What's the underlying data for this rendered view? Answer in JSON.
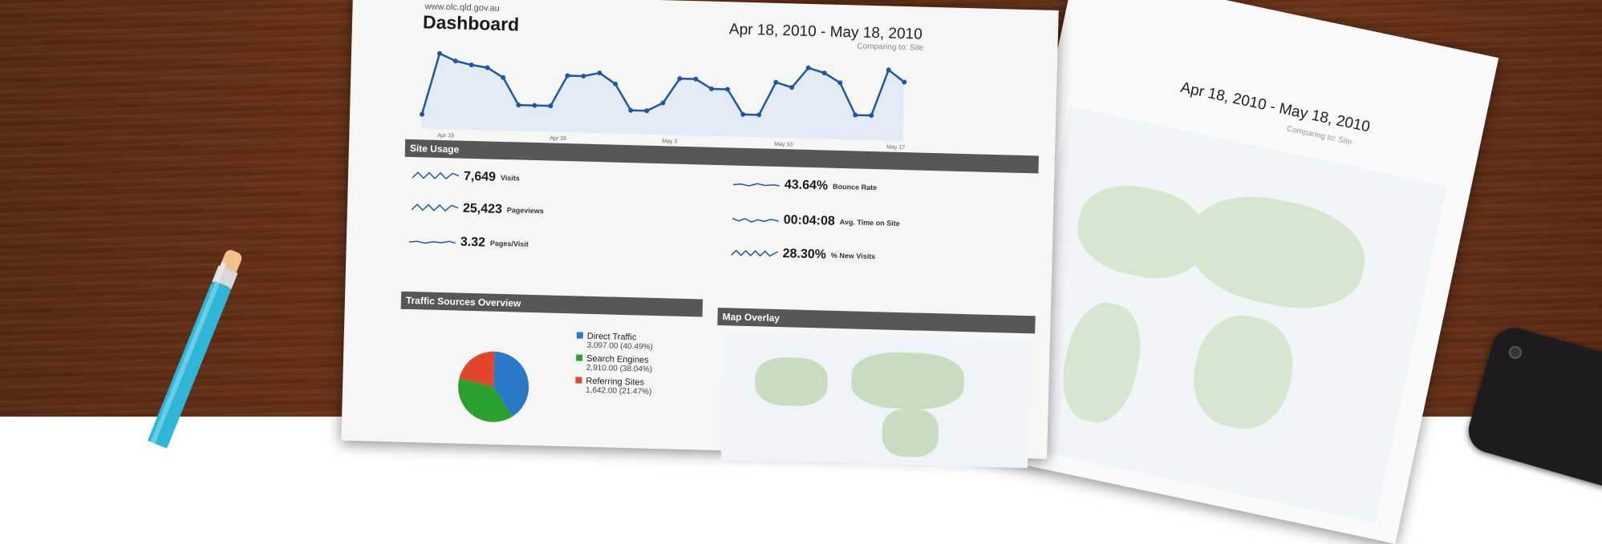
{
  "front_sheet": {
    "url": "www.olc.qld.gov.au",
    "title": "Dashboard",
    "date_range": "Apr 18, 2010 - May 18, 2010",
    "comparing": "Comparing to: Site",
    "chart": {
      "points": [
        60,
        320,
        290,
        275,
        265,
        225,
        110,
        110,
        110,
        240,
        240,
        255,
        210,
        100,
        100,
        135,
        240,
        240,
        200,
        200,
        95,
        95,
        235,
        215,
        300,
        280,
        240,
        105,
        105,
        300,
        250
      ],
      "x_labels": [
        "Apr 19",
        "Apr 26",
        "May 3",
        "May 10",
        "May 17"
      ]
    },
    "site_usage": {
      "header": "Site Usage",
      "metrics": [
        {
          "value": "7,649",
          "label": "Visits"
        },
        {
          "value": "25,423",
          "label": "Pageviews"
        },
        {
          "value": "3.32",
          "label": "Pages/Visit"
        },
        {
          "value": "43.64%",
          "label": "Bounce Rate"
        },
        {
          "value": "00:04:08",
          "label": "Avg. Time on Site"
        },
        {
          "value": "28.30%",
          "label": "% New Visits"
        }
      ]
    },
    "traffic_sources": {
      "header": "Traffic Sources Overview",
      "legend": [
        {
          "name": "Direct Traffic",
          "detail": "3,097.00 (40.49%)",
          "color": "#2a78c8",
          "share": 40.49
        },
        {
          "name": "Search Engines",
          "detail": "2,910.00 (38.04%)",
          "color": "#2aa12e",
          "share": 38.04
        },
        {
          "name": "Referring Sites",
          "detail": "1,642.00 (21.47%)",
          "color": "#e2462a",
          "share": 21.47
        }
      ]
    },
    "map_overlay": {
      "header": "Map Overlay"
    },
    "accent_color": "#2156a5"
  },
  "back_sheet": {
    "date_range": "Apr 18, 2010 - May 18, 2010",
    "comparing": "Comparing to: Site"
  }
}
